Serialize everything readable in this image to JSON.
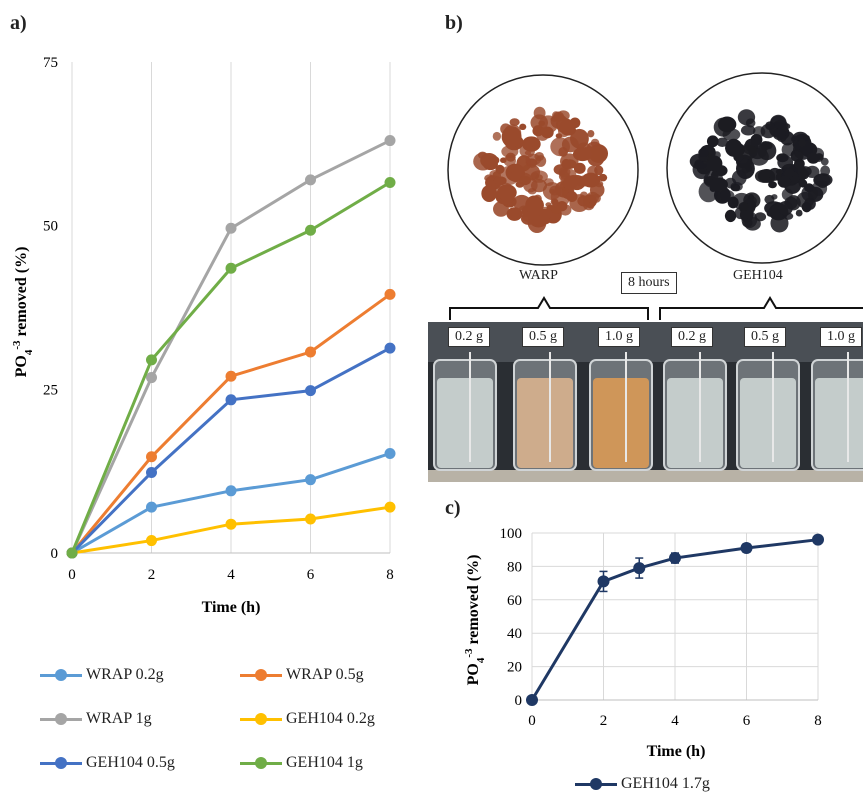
{
  "panels": {
    "a": "a)",
    "b": "b)",
    "c": "c)"
  },
  "photo": {
    "warp_label": "WARP",
    "geh_label": "GEH104",
    "time_label": "8 hours",
    "masses": [
      "0.2 g",
      "0.5 g",
      "1.0 g",
      "0.2 g",
      "0.5 g",
      "1.0 g"
    ],
    "colors": {
      "warp_media": "#9a4a2c",
      "geh_media": "#1c1c22",
      "warp_water_high": "#d99a55",
      "warp_water_mid": "#d8b38e",
      "clear_water": "#cdd6d4"
    }
  },
  "chart_data": [
    {
      "type": "line",
      "xlabel": "Time (h)",
      "ylabel_main": "PO",
      "ylabel_sub": "4",
      "ylabel_sup": "-3",
      "ylabel_rest": " removed (%)",
      "x": [
        0,
        2,
        4,
        6,
        8
      ],
      "xticks": [
        "0",
        "2",
        "4",
        "6",
        "8"
      ],
      "yticks": [
        "0",
        "25",
        "50",
        "75"
      ],
      "xlim": [
        0,
        8
      ],
      "ylim": [
        0,
        75
      ],
      "grid": "vertical",
      "legend_position": "bottom",
      "series": [
        {
          "name": "WRAP 0.2g",
          "color": "#5b9bd5",
          "values": [
            0,
            7,
            9.5,
            11.2,
            15.2
          ]
        },
        {
          "name": "WRAP 0.5g",
          "color": "#ed7d31",
          "values": [
            0,
            14.7,
            27,
            30.7,
            39.5
          ]
        },
        {
          "name": "WRAP 1g",
          "color": "#a5a5a5",
          "values": [
            0,
            26.8,
            49.6,
            57,
            63
          ]
        },
        {
          "name": "GEH104 0.2g",
          "color": "#ffc000",
          "values": [
            0,
            1.9,
            4.4,
            5.2,
            7
          ]
        },
        {
          "name": "GEH104 0.5g",
          "color": "#4472c4",
          "values": [
            0,
            12.3,
            23.4,
            24.8,
            31.3
          ]
        },
        {
          "name": "GEH104 1g",
          "color": "#70ad47",
          "values": [
            0,
            29.5,
            43.5,
            49.3,
            56.6
          ]
        }
      ]
    },
    {
      "type": "line",
      "xlabel": "Time (h)",
      "ylabel_main": "PO",
      "ylabel_sub": "4",
      "ylabel_sup": "-3",
      "ylabel_rest": " removed (%)",
      "x": [
        0,
        2,
        3,
        4,
        6,
        8
      ],
      "xticks": [
        "0",
        "2",
        "4",
        "6",
        "8"
      ],
      "yticks": [
        "0",
        "20",
        "40",
        "60",
        "80",
        "100"
      ],
      "xlim": [
        0,
        8
      ],
      "ylim": [
        0,
        100
      ],
      "grid": "both",
      "legend_position": "bottom",
      "series": [
        {
          "name": "GEH104 1.7g",
          "color": "#1f3864",
          "values": [
            0,
            71,
            79,
            85,
            91,
            96
          ],
          "errors": [
            0,
            6,
            6,
            3,
            2.5,
            0
          ]
        }
      ]
    }
  ]
}
